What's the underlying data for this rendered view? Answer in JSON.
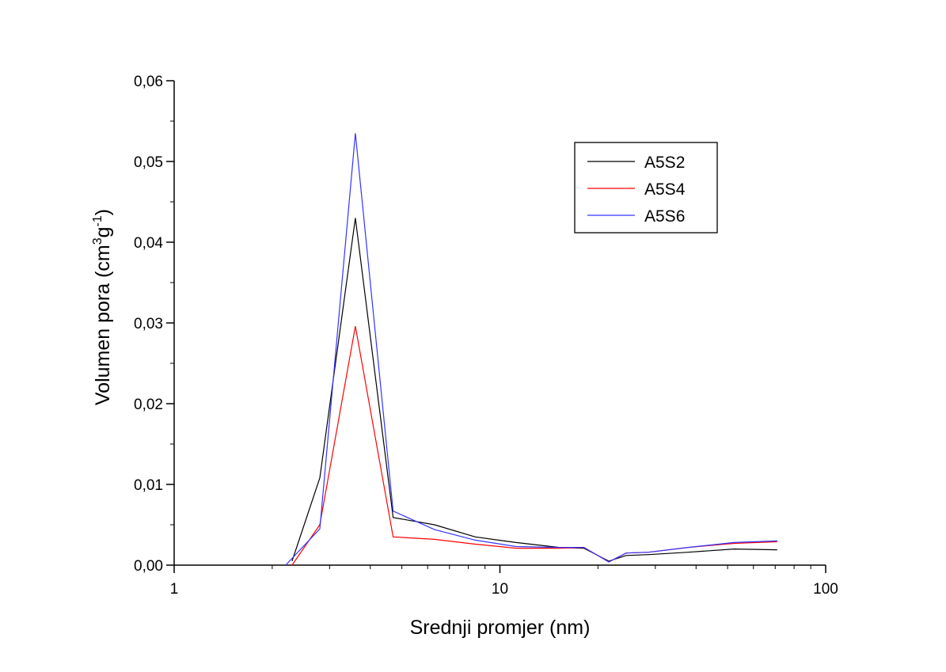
{
  "chart_data": {
    "type": "line",
    "title": "",
    "xlabel": "Srednji promjer (nm)",
    "ylabel": {
      "text": "Volumen pora (cm",
      "sup1": "3",
      "mid": "g",
      "sup2": "-1",
      "close": ")"
    },
    "x_scale": "log",
    "xlim": [
      1,
      100
    ],
    "ylim": [
      0,
      0.06
    ],
    "x_ticks": [
      {
        "value": 1,
        "label": "1"
      },
      {
        "value": 10,
        "label": "10"
      },
      {
        "value": 100,
        "label": "100"
      }
    ],
    "y_ticks": [
      {
        "value": 0,
        "label": "0,00"
      },
      {
        "value": 0.01,
        "label": "0,01"
      },
      {
        "value": 0.02,
        "label": "0,02"
      },
      {
        "value": 0.03,
        "label": "0,03"
      },
      {
        "value": 0.04,
        "label": "0,04"
      },
      {
        "value": 0.05,
        "label": "0,05"
      },
      {
        "value": 0.06,
        "label": "0,06"
      }
    ],
    "grid": false,
    "legend_position": "top-right",
    "series": [
      {
        "name": "A5S2",
        "color": "#000000",
        "x": [
          2.3,
          2.8,
          3.6,
          4.7,
          6.3,
          8.4,
          11.2,
          15.2,
          18.1,
          21.6,
          24.4,
          28.6,
          37.8,
          52.3,
          71.0
        ],
        "y": [
          0.0005,
          0.0108,
          0.043,
          0.0059,
          0.005,
          0.0035,
          0.0028,
          0.0022,
          0.0021,
          0.0005,
          0.0012,
          0.0013,
          0.0016,
          0.002,
          0.0019
        ]
      },
      {
        "name": "A5S4",
        "color": "#ff0000",
        "x": [
          2.3,
          2.8,
          3.6,
          4.7,
          6.3,
          8.4,
          11.2,
          15.2,
          18.1,
          21.6,
          24.4,
          28.6,
          37.8,
          52.3,
          71.0
        ],
        "y": [
          0.0,
          0.005,
          0.0296,
          0.0035,
          0.0032,
          0.0026,
          0.0021,
          0.0021,
          0.0022,
          0.0004,
          0.0015,
          0.0016,
          0.0022,
          0.0027,
          0.0029
        ]
      },
      {
        "name": "A5S6",
        "color": "#3333ff",
        "x": [
          2.2,
          2.8,
          3.6,
          4.7,
          6.3,
          8.4,
          11.2,
          15.2,
          18.1,
          21.6,
          24.4,
          28.6,
          37.8,
          52.3,
          71.0
        ],
        "y": [
          0.0,
          0.0045,
          0.0535,
          0.0067,
          0.0044,
          0.0031,
          0.0023,
          0.0022,
          0.0022,
          0.0004,
          0.0015,
          0.0016,
          0.0022,
          0.0028,
          0.003
        ]
      }
    ]
  }
}
